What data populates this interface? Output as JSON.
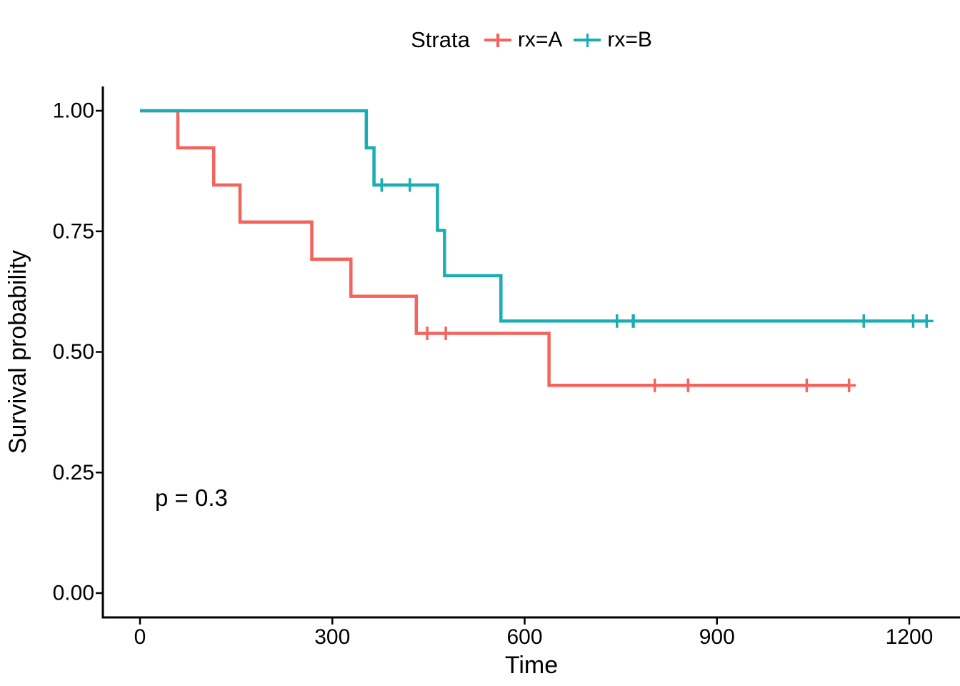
{
  "chart_data": {
    "type": "line",
    "subtype": "kaplan-meier-step-curve",
    "title": "",
    "legend_title": "Strata",
    "legend_position": "top-center",
    "xlabel": "Time",
    "ylabel": "Survival probability",
    "x_range": [
      0,
      1200
    ],
    "y_range": [
      0.0,
      1.0
    ],
    "grid": false,
    "annotation": "p = 0.3",
    "x_ticks": [
      {
        "value": 0,
        "label": "0"
      },
      {
        "value": 300,
        "label": "300"
      },
      {
        "value": 600,
        "label": "600"
      },
      {
        "value": 900,
        "label": "900"
      },
      {
        "value": 1200,
        "label": "1200"
      }
    ],
    "y_ticks": [
      {
        "value": 0.0,
        "label": "0.00"
      },
      {
        "value": 0.25,
        "label": "0.25"
      },
      {
        "value": 0.5,
        "label": "0.50"
      },
      {
        "value": 0.75,
        "label": "0.75"
      },
      {
        "value": 1.0,
        "label": "1.00"
      }
    ],
    "series": [
      {
        "name": "rx=A",
        "color": "#F4635E",
        "steps": [
          [
            0,
            1.0
          ],
          [
            59,
            0.9231
          ],
          [
            115,
            0.8462
          ],
          [
            156,
            0.7692
          ],
          [
            268,
            0.6923
          ],
          [
            329,
            0.6154
          ],
          [
            431,
            0.5385
          ],
          [
            638,
            0.4308
          ]
        ],
        "end_time": 1106,
        "censor_points": [
          [
            448,
            0.5385
          ],
          [
            477,
            0.5385
          ],
          [
            803,
            0.4308
          ],
          [
            855,
            0.4308
          ],
          [
            1040,
            0.4308
          ],
          [
            1106,
            0.4308
          ]
        ]
      },
      {
        "name": "rx=B",
        "color": "#1BADB4",
        "steps": [
          [
            0,
            1.0
          ],
          [
            353,
            0.9231
          ],
          [
            365,
            0.8462
          ],
          [
            464,
            0.7521
          ],
          [
            475,
            0.6581
          ],
          [
            563,
            0.5641
          ]
        ],
        "end_time": 1227,
        "censor_points": [
          [
            377,
            0.8462
          ],
          [
            421,
            0.8462
          ],
          [
            744,
            0.5641
          ],
          [
            769,
            0.5641
          ],
          [
            770,
            0.5641
          ],
          [
            1129,
            0.5641
          ],
          [
            1206,
            0.5641
          ],
          [
            1227,
            0.5641
          ]
        ]
      }
    ]
  }
}
